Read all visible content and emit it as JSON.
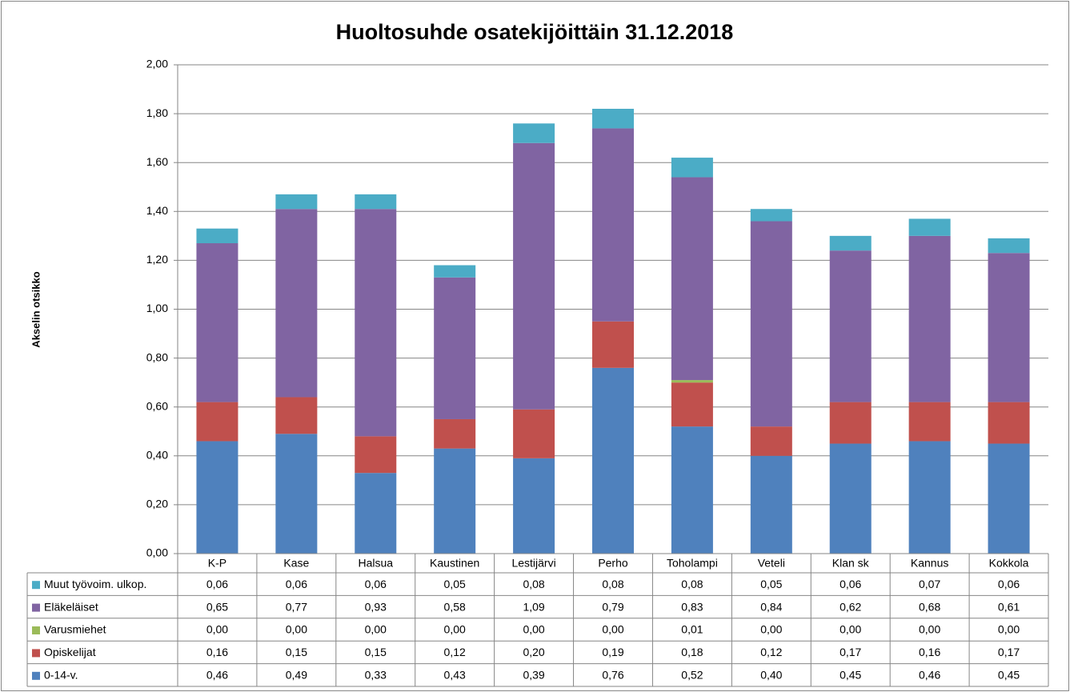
{
  "chart_data": {
    "type": "bar",
    "stacked": true,
    "title": "Huoltosuhde osatekijöittäin 31.12.2018",
    "y_axis_label": "Akselin otsikko",
    "categories": [
      "K-P",
      "Kase",
      "Halsua",
      "Kaustinen",
      "Lestijärvi",
      "Perho",
      "Toholampi",
      "Veteli",
      "Klan sk",
      "Kannus",
      "Kokkola"
    ],
    "series": [
      {
        "name": "0-14-v.",
        "color": "#4f81bd",
        "values": [
          0.46,
          0.49,
          0.33,
          0.43,
          0.39,
          0.76,
          0.52,
          0.4,
          0.45,
          0.46,
          0.45
        ],
        "value_labels": [
          "0,46",
          "0,49",
          "0,33",
          "0,43",
          "0,39",
          "0,76",
          "0,52",
          "0,40",
          "0,45",
          "0,46",
          "0,45"
        ]
      },
      {
        "name": "Opiskelijat",
        "color": "#c0504d",
        "values": [
          0.16,
          0.15,
          0.15,
          0.12,
          0.2,
          0.19,
          0.18,
          0.12,
          0.17,
          0.16,
          0.17
        ],
        "value_labels": [
          "0,16",
          "0,15",
          "0,15",
          "0,12",
          "0,20",
          "0,19",
          "0,18",
          "0,12",
          "0,17",
          "0,16",
          "0,17"
        ]
      },
      {
        "name": "Varusmiehet",
        "color": "#9bbb59",
        "values": [
          0,
          0,
          0,
          0,
          0,
          0,
          0.01,
          0,
          0,
          0,
          0
        ],
        "value_labels": [
          "0,00",
          "0,00",
          "0,00",
          "0,00",
          "0,00",
          "0,00",
          "0,01",
          "0,00",
          "0,00",
          "0,00",
          "0,00"
        ]
      },
      {
        "name": "Eläkeläiset",
        "color": "#8064a2",
        "values": [
          0.65,
          0.77,
          0.93,
          0.58,
          1.09,
          0.79,
          0.83,
          0.84,
          0.62,
          0.68,
          0.61
        ],
        "value_labels": [
          "0,65",
          "0,77",
          "0,93",
          "0,58",
          "1,09",
          "0,79",
          "0,83",
          "0,84",
          "0,62",
          "0,68",
          "0,61"
        ]
      },
      {
        "name": "Muut työvoim. ulkop.",
        "color": "#4bacc6",
        "values": [
          0.06,
          0.06,
          0.06,
          0.05,
          0.08,
          0.08,
          0.08,
          0.05,
          0.06,
          0.07,
          0.06
        ],
        "value_labels": [
          "0,06",
          "0,06",
          "0,06",
          "0,05",
          "0,08",
          "0,08",
          "0,08",
          "0,05",
          "0,06",
          "0,07",
          "0,06"
        ]
      }
    ],
    "ylim": [
      0,
      2
    ],
    "yticks": [
      {
        "value": 0,
        "label": "0,00"
      },
      {
        "value": 0.2,
        "label": "0,20"
      },
      {
        "value": 0.4,
        "label": "0,40"
      },
      {
        "value": 0.6,
        "label": "0,60"
      },
      {
        "value": 0.8,
        "label": "0,80"
      },
      {
        "value": 1,
        "label": "1,00"
      },
      {
        "value": 1.2,
        "label": "1,20"
      },
      {
        "value": 1.4,
        "label": "1,40"
      },
      {
        "value": 1.6,
        "label": "1,60"
      },
      {
        "value": 1.8,
        "label": "1,80"
      },
      {
        "value": 2,
        "label": "2,00"
      }
    ],
    "grid": true
  }
}
